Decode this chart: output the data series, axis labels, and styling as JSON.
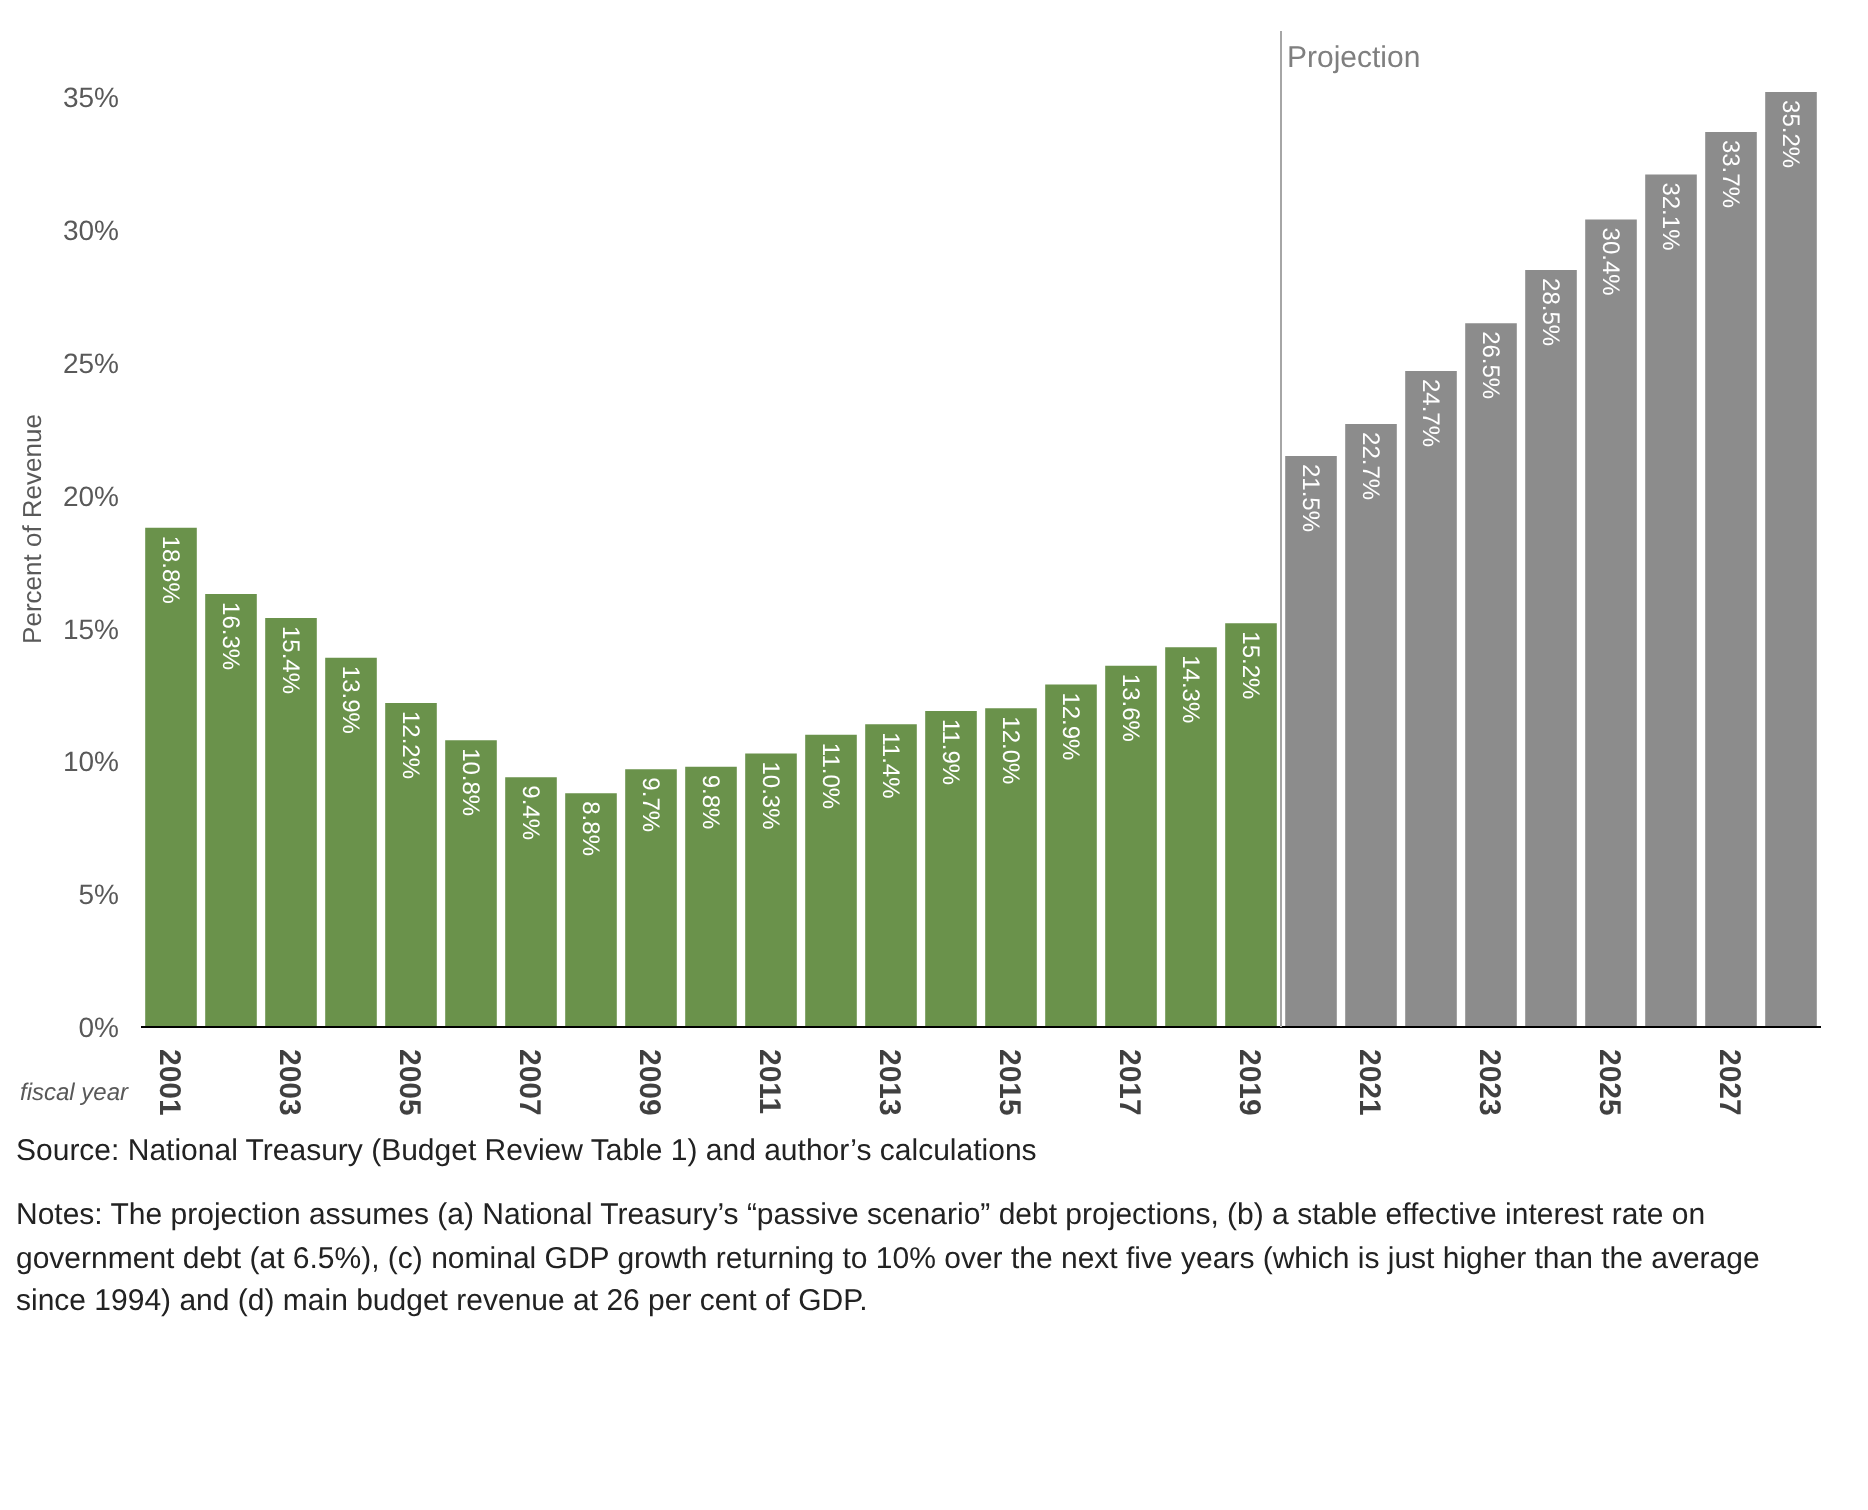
{
  "chart_data": {
    "type": "bar",
    "xlabel": "fiscal year",
    "ylabel": "Percent of Revenue",
    "x": [
      2001,
      2002,
      2003,
      2004,
      2005,
      2006,
      2007,
      2008,
      2009,
      2010,
      2011,
      2012,
      2013,
      2014,
      2015,
      2016,
      2017,
      2018,
      2019,
      2020,
      2021,
      2022,
      2023,
      2024,
      2025,
      2026,
      2027,
      2028
    ],
    "values": [
      18.8,
      16.3,
      15.4,
      13.9,
      12.2,
      10.8,
      9.4,
      8.8,
      9.7,
      9.8,
      10.3,
      11.0,
      11.4,
      11.9,
      12.0,
      12.9,
      13.6,
      14.3,
      15.2,
      21.5,
      22.7,
      24.7,
      26.5,
      28.5,
      30.4,
      32.1,
      33.7,
      35.2
    ],
    "colors": [
      "#6a924b",
      "#6a924b",
      "#6a924b",
      "#6a924b",
      "#6a924b",
      "#6a924b",
      "#6a924b",
      "#6a924b",
      "#6a924b",
      "#6a924b",
      "#6a924b",
      "#6a924b",
      "#6a924b",
      "#6a924b",
      "#6a924b",
      "#6a924b",
      "#6a924b",
      "#6a924b",
      "#6a924b",
      "#8c8c8c",
      "#8c8c8c",
      "#8c8c8c",
      "#8c8c8c",
      "#8c8c8c",
      "#8c8c8c",
      "#8c8c8c",
      "#8c8c8c",
      "#8c8c8c"
    ],
    "value_labels": [
      "18.8%",
      "16.3%",
      "15.4%",
      "13.9%",
      "12.2%",
      "10.8%",
      "9.4%",
      "8.8%",
      "9.7%",
      "9.8%",
      "10.3%",
      "11.0%",
      "11.4%",
      "11.9%",
      "12.0%",
      "12.9%",
      "13.6%",
      "14.3%",
      "15.2%",
      "21.5%",
      "22.7%",
      "24.7%",
      "26.5%",
      "28.5%",
      "30.4%",
      "32.1%",
      "33.7%",
      "35.2%"
    ],
    "xlim": [
      2000.5,
      2028.5
    ],
    "xticks": [
      2001,
      2003,
      2005,
      2007,
      2009,
      2011,
      2013,
      2015,
      2017,
      2019,
      2021,
      2023,
      2025,
      2027
    ],
    "ylim": [
      0,
      37.5
    ],
    "yticks": [
      {
        "value": 0,
        "label": "0%"
      },
      {
        "value": 5,
        "label": "5%"
      },
      {
        "value": 10,
        "label": "10%"
      },
      {
        "value": 15,
        "label": "15%"
      },
      {
        "value": 20,
        "label": "20%"
      },
      {
        "value": 25,
        "label": "25%"
      },
      {
        "value": 30,
        "label": "30%"
      },
      {
        "value": 35,
        "label": "35%"
      }
    ],
    "grid": false,
    "ref_lines": [
      {
        "axis": "x",
        "value": 2019.5,
        "label": "Projection",
        "color": "#a6a6a6"
      }
    ],
    "annotations": [
      "Source: National Treasury (Budget Review Table 1) and author’s calculations",
      "Notes: The projection assumes (a) National Treasury’s “passive scenario” debt projections, (b) a stable effective interest rate on government debt (at 6.5%), (c) nominal GDP growth returning to 10% over the next five years (which is just higher than the average since 1994) and (d) main budget revenue at 26 per cent of GDP."
    ]
  }
}
